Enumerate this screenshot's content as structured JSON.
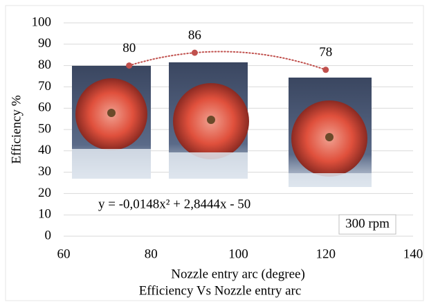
{
  "chart_data": {
    "type": "scatter",
    "title": "Efficiency Vs Nozzle entry arc",
    "x_label": "Nozzle entry arc (degree)",
    "y_label": "Efficiency %",
    "equation": "y = -0,0148x² + 2,8444x - 50",
    "annotation": "300 rpm",
    "x": [
      75,
      90,
      120
    ],
    "values": [
      80,
      86,
      78
    ],
    "color": "#c0504d",
    "xlim": [
      60,
      140
    ],
    "xticks": [
      60,
      80,
      100,
      120,
      140
    ],
    "ylim": [
      0,
      100
    ],
    "yticks": [
      0,
      10,
      20,
      30,
      40,
      50,
      60,
      70,
      80,
      90,
      100
    ],
    "grid": true
  }
}
